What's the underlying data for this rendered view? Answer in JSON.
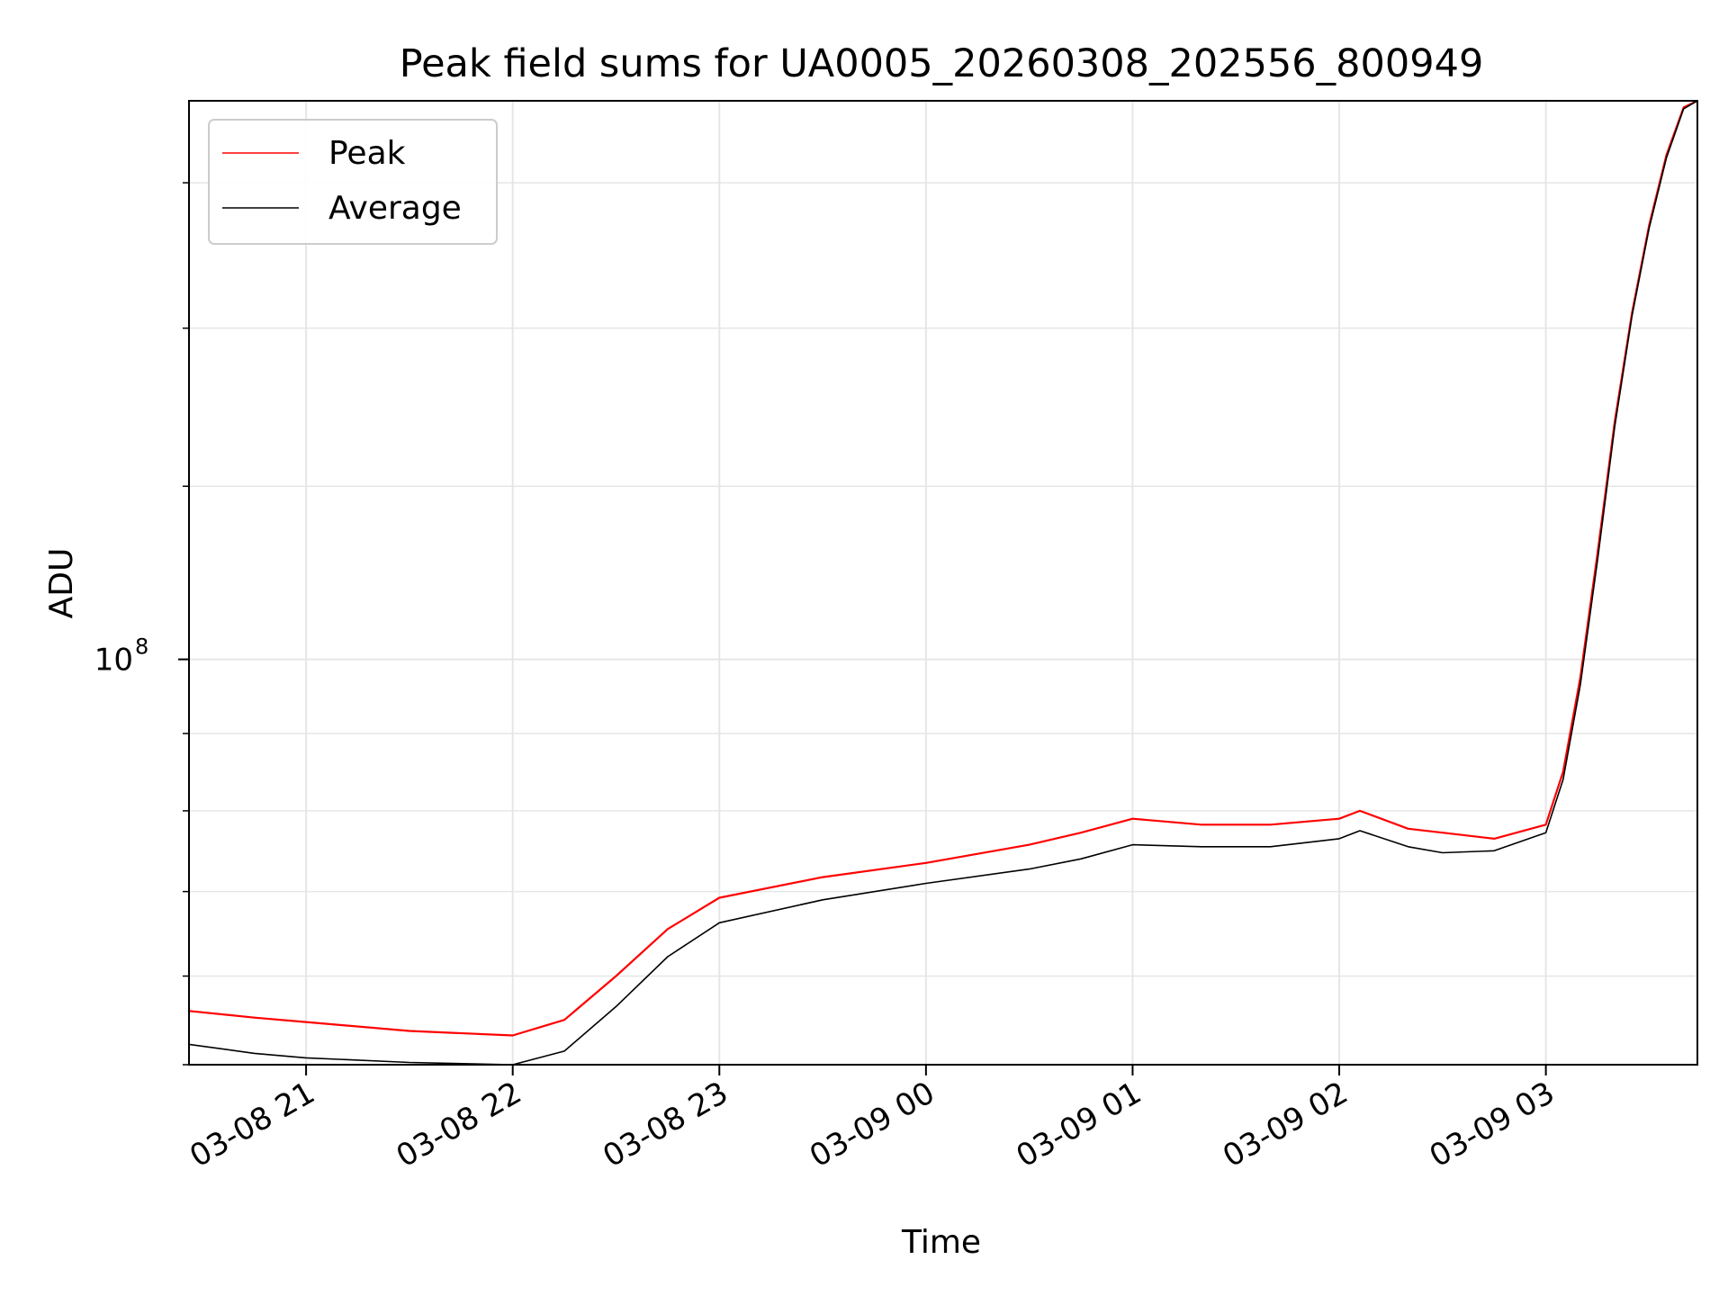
{
  "chart_data": {
    "type": "line",
    "title": "Peak field sums for UA0005_20260308_202556_800949",
    "xlabel": "Time",
    "ylabel": "ADU",
    "yscale": "log",
    "grid": true,
    "legend": "top-left",
    "xlim": [
      "2026-03-08 20:26",
      "2026-03-09 03:44"
    ],
    "ylim": [
      80000000,
      136000000
    ],
    "x_ticks": [
      {
        "value": "2026-03-08 21:00",
        "label": "03-08 21"
      },
      {
        "value": "2026-03-08 22:00",
        "label": "03-08 22"
      },
      {
        "value": "2026-03-08 23:00",
        "label": "03-08 23"
      },
      {
        "value": "2026-03-09 00:00",
        "label": "03-09 00"
      },
      {
        "value": "2026-03-09 01:00",
        "label": "03-09 01"
      },
      {
        "value": "2026-03-09 02:00",
        "label": "03-09 02"
      },
      {
        "value": "2026-03-09 03:00",
        "label": "03-09 03"
      }
    ],
    "y_major_ticks": [
      {
        "value": 100000000,
        "base": "10",
        "exponent": "8"
      }
    ],
    "y_minor_ticks": [
      80000000,
      84000000,
      88000000,
      92000000,
      96000000,
      110000000,
      120000000,
      130000000
    ],
    "x": [
      "2026-03-08 20:26",
      "2026-03-08 20:45",
      "2026-03-08 21:00",
      "2026-03-08 21:30",
      "2026-03-08 22:00",
      "2026-03-08 22:15",
      "2026-03-08 22:30",
      "2026-03-08 22:45",
      "2026-03-08 23:00",
      "2026-03-08 23:30",
      "2026-03-09 00:00",
      "2026-03-09 00:30",
      "2026-03-09 00:45",
      "2026-03-09 01:00",
      "2026-03-09 01:20",
      "2026-03-09 01:40",
      "2026-03-09 02:00",
      "2026-03-09 02:06",
      "2026-03-09 02:20",
      "2026-03-09 02:30",
      "2026-03-09 02:45",
      "2026-03-09 03:00",
      "2026-03-09 03:05",
      "2026-03-09 03:10",
      "2026-03-09 03:15",
      "2026-03-09 03:20",
      "2026-03-09 03:25",
      "2026-03-09 03:30",
      "2026-03-09 03:35",
      "2026-03-09 03:40",
      "2026-03-09 03:44"
    ],
    "series": [
      {
        "name": "Peak",
        "color": "#ff0000",
        "values": [
          82400000,
          82100000,
          81900000,
          81500000,
          81300000,
          82000000,
          84000000,
          86200000,
          87700000,
          88700000,
          89400000,
          90300000,
          90900000,
          91600000,
          91300000,
          91300000,
          91600000,
          92000000,
          91100000,
          90900000,
          90600000,
          91300000,
          94000000,
          99000000,
          106000000,
          114000000,
          121000000,
          127000000,
          132000000,
          135500000,
          136000000
        ]
      },
      {
        "name": "Average",
        "color": "#000000",
        "values": [
          80900000,
          80500000,
          80300000,
          80100000,
          80000000,
          80600000,
          82600000,
          84900000,
          86500000,
          87600000,
          88400000,
          89100000,
          89600000,
          90300000,
          90200000,
          90200000,
          90600000,
          91000000,
          90200000,
          89900000,
          90000000,
          90900000,
          93600000,
          98600000,
          105600000,
          113700000,
          120800000,
          126800000,
          131800000,
          135400000,
          136000000
        ]
      }
    ]
  }
}
